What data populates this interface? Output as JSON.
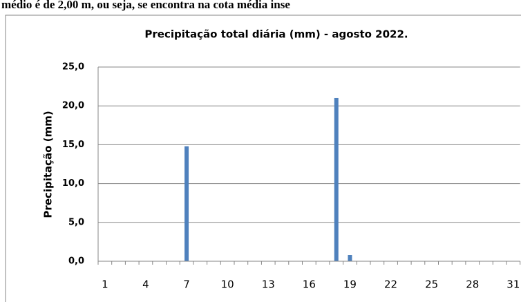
{
  "page_text": "médio é de 2,00 m, ou seja, se encontra  na  cota média inse",
  "chart_data": {
    "type": "bar",
    "title": "Precipitação total diária (mm) - agosto 2022.",
    "y_label": "Precipitação (mm)",
    "categories": [
      "1",
      null,
      null,
      "4",
      null,
      null,
      "7",
      null,
      null,
      "10",
      null,
      null,
      "13",
      null,
      null,
      "16",
      null,
      null,
      "19",
      null,
      null,
      "22",
      null,
      null,
      "25",
      null,
      null,
      "28",
      null,
      null,
      "31"
    ],
    "values": [
      0,
      0,
      0,
      0,
      0,
      0,
      14.8,
      0,
      0,
      0,
      0,
      0,
      0,
      0,
      0,
      0,
      0,
      21.0,
      0.8,
      0,
      0,
      0,
      0,
      0,
      0,
      0,
      0,
      0,
      0,
      0,
      0
    ],
    "color": "#4f81bd",
    "ylim": [
      0,
      25
    ],
    "yticks": [
      {
        "value": 0,
        "label": "0,0"
      },
      {
        "value": 5,
        "label": "5,0"
      },
      {
        "value": 10,
        "label": "10,0"
      },
      {
        "value": 15,
        "label": "15,0"
      },
      {
        "value": 20,
        "label": "20,0"
      },
      {
        "value": 25,
        "label": "25,0"
      }
    ],
    "grid": true
  }
}
